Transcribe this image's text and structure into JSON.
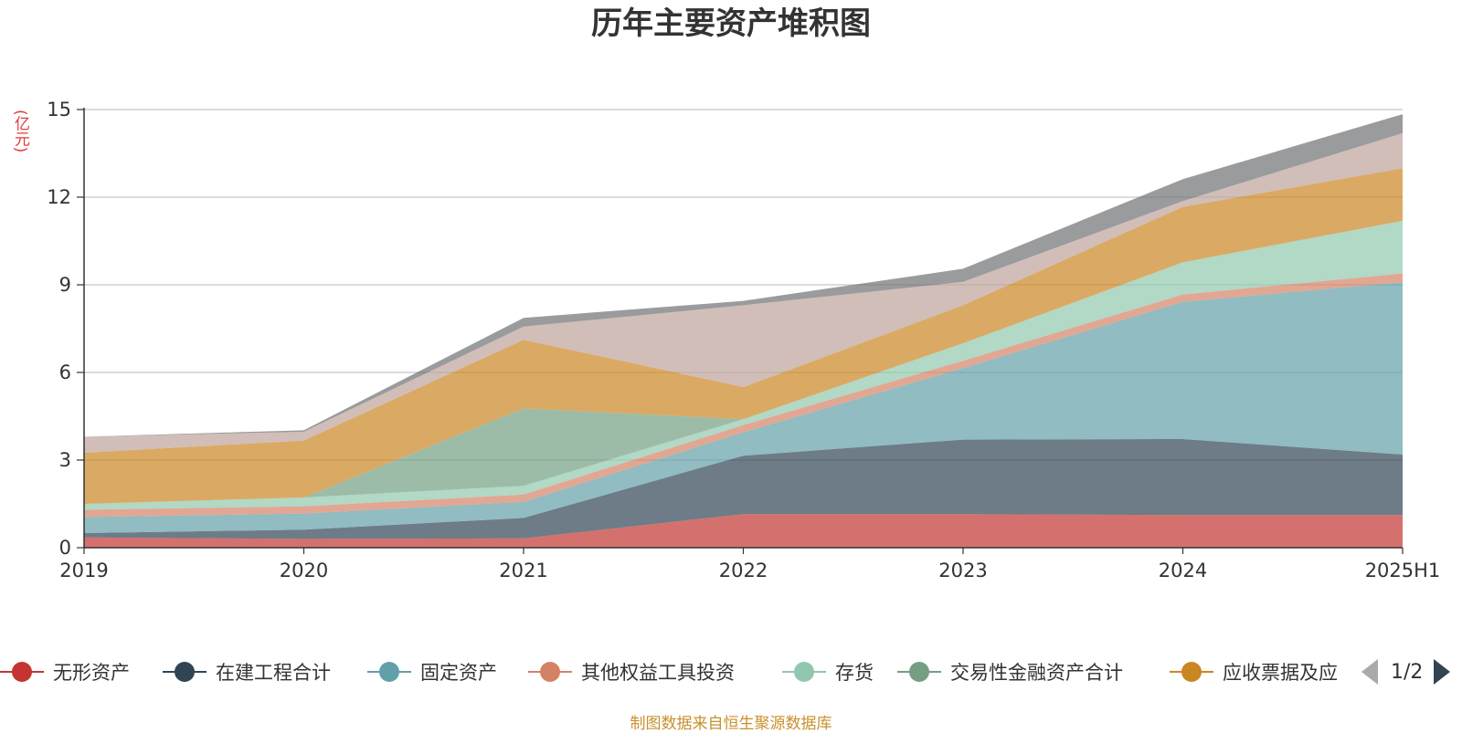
{
  "chart_data": {
    "type": "area",
    "stacked": true,
    "title": "历年主要资产堆积图",
    "unit_label": "(亿元)",
    "categories": [
      "2019",
      "2020",
      "2021",
      "2022",
      "2023",
      "2024",
      "2025H1"
    ],
    "y_ticks": [
      "0",
      "3",
      "6",
      "9",
      "12",
      "15"
    ],
    "ylim": [
      0,
      15
    ],
    "grid": true,
    "legend_position": "bottom",
    "series": [
      {
        "name": "无形资产",
        "color": "#c23531",
        "values": [
          0.35,
          0.3,
          0.32,
          1.15,
          1.15,
          1.12,
          1.12
        ]
      },
      {
        "name": "在建工程合计",
        "color": "#2f4554",
        "values": [
          0.15,
          0.32,
          0.7,
          2.0,
          2.55,
          2.6,
          2.07
        ]
      },
      {
        "name": "固定资产",
        "color": "#61a0a8",
        "values": [
          0.55,
          0.55,
          0.55,
          0.8,
          2.45,
          4.7,
          5.9
        ]
      },
      {
        "name": "其他权益工具投资",
        "color": "#d48265",
        "values": [
          0.25,
          0.25,
          0.25,
          0.25,
          0.25,
          0.25,
          0.3
        ]
      },
      {
        "name": "存货",
        "color": "#91c7ae",
        "values": [
          0.2,
          0.3,
          0.3,
          0.2,
          0.6,
          1.1,
          1.8
        ]
      },
      {
        "name": "交易性金融资产合计",
        "color": "#749f83",
        "values": [
          0.0,
          0.0,
          2.65,
          0.0,
          0.0,
          0.0,
          0.0
        ]
      },
      {
        "name": "应收票据及应",
        "color": "#ca8622",
        "values": [
          1.75,
          1.95,
          2.35,
          1.1,
          1.3,
          1.9,
          1.8
        ]
      },
      {
        "name": "",
        "color": "#bda29a",
        "values": [
          0.55,
          0.3,
          0.45,
          2.8,
          0.8,
          0.2,
          1.2
        ]
      },
      {
        "name": "",
        "color": "#6e7074",
        "values": [
          0.0,
          0.05,
          0.3,
          0.15,
          0.45,
          0.75,
          0.65
        ]
      }
    ]
  },
  "legend_pager": {
    "text": "1/2"
  },
  "source_note": "制图数据来自恒生聚源数据库"
}
